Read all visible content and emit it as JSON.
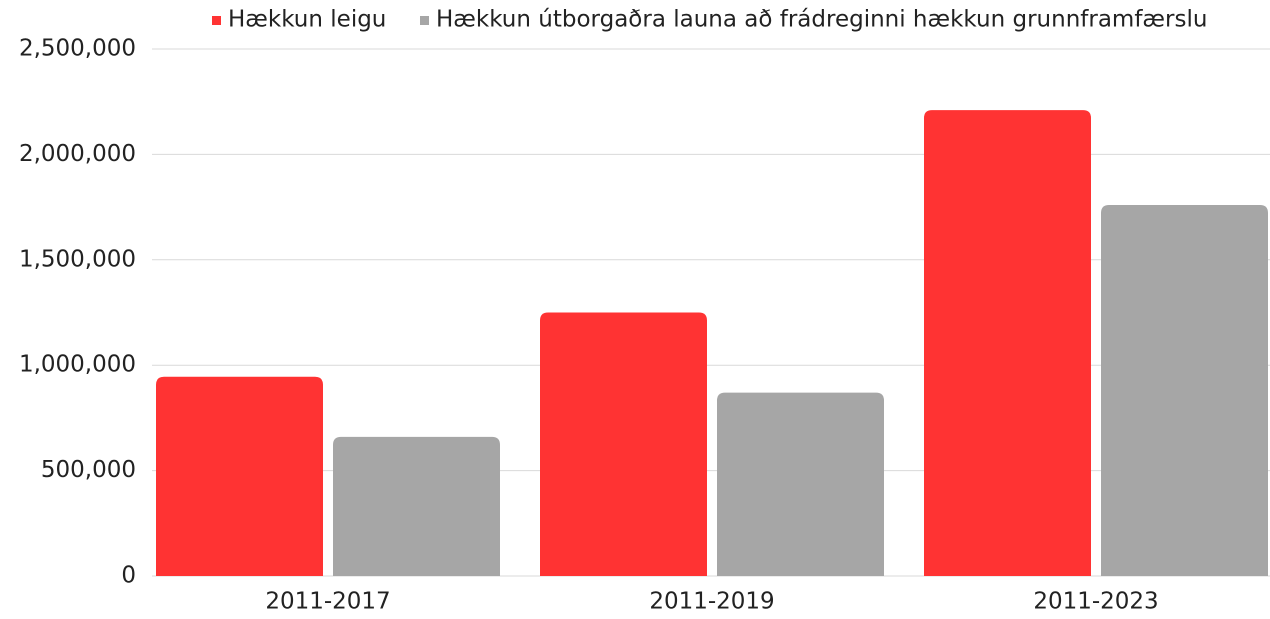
{
  "chart_data": {
    "type": "bar",
    "categories": [
      "2011-2017",
      "2011-2019",
      "2011-2023"
    ],
    "series": [
      {
        "name": "Hækkun leigu",
        "color": "#ff3333",
        "values": [
          945000,
          1250000,
          2210000
        ]
      },
      {
        "name": "Hækkun útborgaðra launa að frádreginni hækkun grunnframfærslu",
        "color": "#a6a6a6",
        "values": [
          660000,
          870000,
          1760000
        ]
      }
    ],
    "ylim": [
      0,
      2500000
    ],
    "yticks": [
      0,
      {
        "value": 500000,
        "label": "500,000"
      },
      {
        "value": 1000000,
        "label": "1,000,000"
      },
      {
        "value": 1500000,
        "label": "1,500,000"
      },
      {
        "value": 2000000,
        "label": "2,000,000"
      },
      {
        "value": 2500000,
        "label": "2,500,000"
      }
    ],
    "grid": true,
    "legend": "top"
  }
}
